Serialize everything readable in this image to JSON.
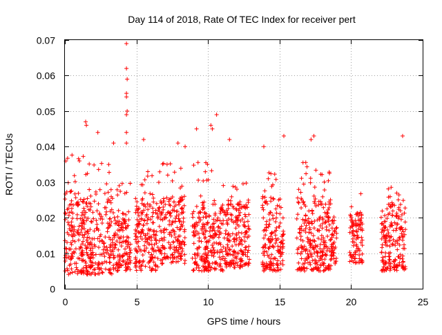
{
  "chart_data": {
    "type": "scatter",
    "title": "Day 114 of 2018, Rate Of TEC Index for receiver pert",
    "xlabel": "GPS time / hours",
    "ylabel": "ROTI / TECUs",
    "xlim": [
      0,
      25
    ],
    "ylim": [
      0,
      0.07
    ],
    "xticks": [
      "0",
      "5",
      "10",
      "15",
      "20",
      "25"
    ],
    "yticks": [
      "0",
      "0.01",
      "0.02",
      "0.03",
      "0.04",
      "0.05",
      "0.06",
      "0.07"
    ],
    "grid": true,
    "marker": "plus",
    "color": "#ff0000",
    "clusters": [
      {
        "x": [
          0.0,
          3.3
        ],
        "y": [
          0.004,
          0.028
        ],
        "dense_top": 0.038
      },
      {
        "x": [
          3.3,
          4.6
        ],
        "y": [
          0.005,
          0.022
        ],
        "dense_top": 0.03
      },
      {
        "x": [
          4.9,
          6.7
        ],
        "y": [
          0.005,
          0.024
        ],
        "dense_top": 0.034
      },
      {
        "x": [
          6.7,
          8.4
        ],
        "y": [
          0.007,
          0.026
        ],
        "dense_top": 0.036
      },
      {
        "x": [
          8.9,
          11.1
        ],
        "y": [
          0.005,
          0.024
        ],
        "dense_top": 0.036
      },
      {
        "x": [
          11.1,
          12.9
        ],
        "y": [
          0.006,
          0.024
        ],
        "dense_top": 0.03
      },
      {
        "x": [
          13.8,
          15.3
        ],
        "y": [
          0.005,
          0.026
        ],
        "dense_top": 0.033
      },
      {
        "x": [
          16.2,
          18.6
        ],
        "y": [
          0.005,
          0.026
        ],
        "dense_top": 0.036
      },
      {
        "x": [
          18.6,
          19.0
        ],
        "y": [
          0.007,
          0.02
        ],
        "dense_top": 0.022
      },
      {
        "x": [
          19.9,
          20.8
        ],
        "y": [
          0.007,
          0.022
        ],
        "dense_top": 0.031
      },
      {
        "x": [
          22.1,
          23.8
        ],
        "y": [
          0.005,
          0.024
        ],
        "dense_top": 0.03
      }
    ],
    "outliers": [
      {
        "x": 4.3,
        "y": 0.069
      },
      {
        "x": 4.3,
        "y": 0.062
      },
      {
        "x": 4.35,
        "y": 0.059
      },
      {
        "x": 4.3,
        "y": 0.055
      },
      {
        "x": 4.3,
        "y": 0.054
      },
      {
        "x": 4.35,
        "y": 0.05
      },
      {
        "x": 4.3,
        "y": 0.049
      },
      {
        "x": 4.3,
        "y": 0.044
      },
      {
        "x": 4.3,
        "y": 0.041
      },
      {
        "x": 10.6,
        "y": 0.049
      },
      {
        "x": 10.2,
        "y": 0.046
      },
      {
        "x": 10.3,
        "y": 0.045
      },
      {
        "x": 9.2,
        "y": 0.045
      },
      {
        "x": 1.45,
        "y": 0.047
      },
      {
        "x": 1.5,
        "y": 0.046
      },
      {
        "x": 2.3,
        "y": 0.044
      },
      {
        "x": 17.2,
        "y": 0.042
      },
      {
        "x": 17.4,
        "y": 0.043
      },
      {
        "x": 23.6,
        "y": 0.043
      },
      {
        "x": 15.3,
        "y": 0.043
      },
      {
        "x": 11.5,
        "y": 0.042
      },
      {
        "x": 5.5,
        "y": 0.042
      },
      {
        "x": 3.4,
        "y": 0.041
      },
      {
        "x": 8.4,
        "y": 0.04
      },
      {
        "x": 7.9,
        "y": 0.041
      },
      {
        "x": 13.9,
        "y": 0.04
      }
    ]
  }
}
